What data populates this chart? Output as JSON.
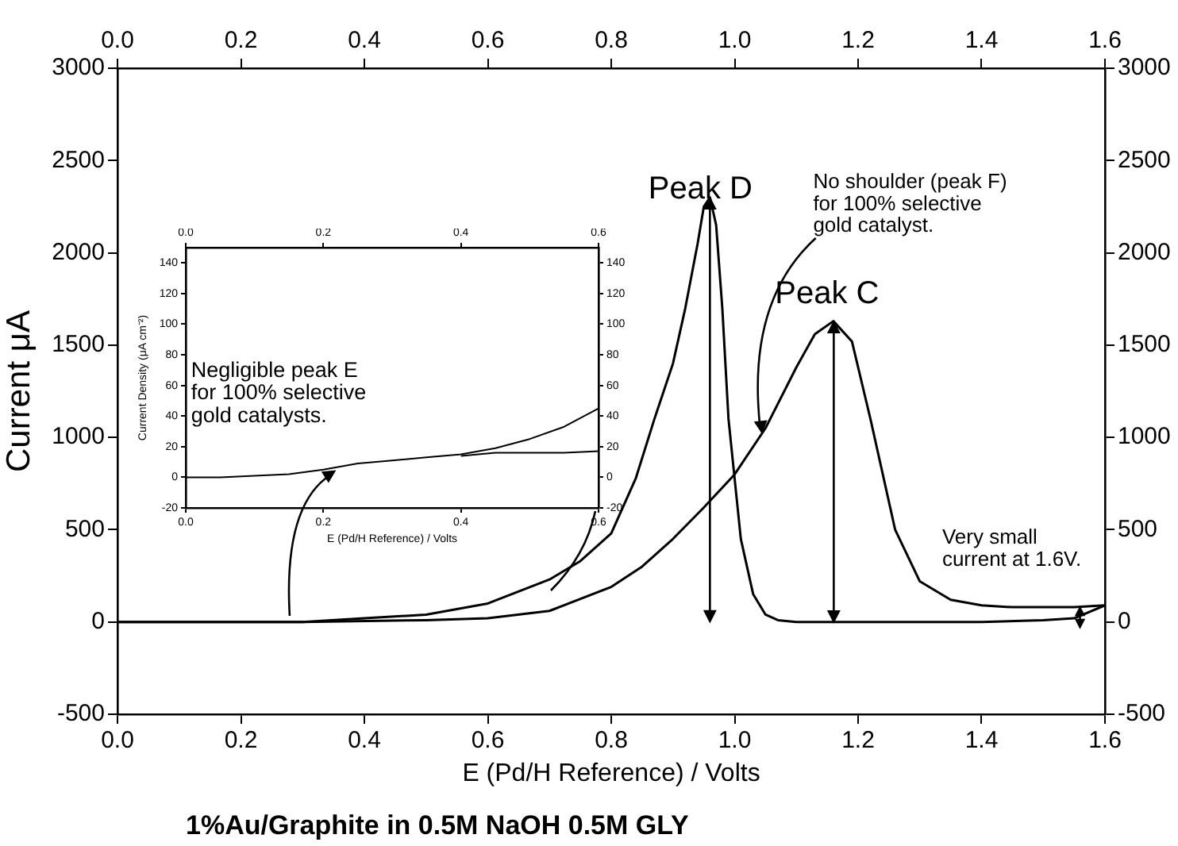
{
  "chart_data": [
    {
      "type": "line",
      "title": "1%Au/Graphite in 0.5M NaOH 0.5M GLY",
      "xlabel": "E (Pd/H Reference) / Volts",
      "ylabel": "Current μA",
      "xlim": [
        0,
        1.6
      ],
      "xticks": [
        {
          "value": 0,
          "label": "0.0"
        },
        {
          "value": 0.2,
          "label": "0.2"
        },
        {
          "value": 0.4,
          "label": "0.4"
        },
        {
          "value": 0.6,
          "label": "0.6"
        },
        {
          "value": 0.8,
          "label": "0.8"
        },
        {
          "value": 1,
          "label": "1.0"
        },
        {
          "value": 1.2,
          "label": "1.2"
        },
        {
          "value": 1.4,
          "label": "1.4"
        },
        {
          "value": 1.6,
          "label": "1.6"
        }
      ],
      "x2lim": [
        0,
        1.6
      ],
      "x2ticks": [
        {
          "value": 0,
          "label": "0.0"
        },
        {
          "value": 0.2,
          "label": "0.2"
        },
        {
          "value": 0.4,
          "label": "0.4"
        },
        {
          "value": 0.6,
          "label": "0.6"
        },
        {
          "value": 0.8,
          "label": "0.8"
        },
        {
          "value": 1,
          "label": "1.0"
        },
        {
          "value": 1.2,
          "label": "1.2"
        },
        {
          "value": 1.4,
          "label": "1.4"
        },
        {
          "value": 1.6,
          "label": "1.6"
        }
      ],
      "ylim": [
        -500,
        3000
      ],
      "yticks": [
        -500,
        0,
        500,
        1000,
        1500,
        2000,
        2500,
        3000
      ],
      "y2lim": [
        -500,
        3000
      ],
      "y2ticks": [
        -500,
        0,
        500,
        1000,
        1500,
        2000,
        2500,
        3000
      ],
      "series": [
        {
          "color": "#000000",
          "x": [
            0,
            0.3,
            0.5,
            0.6,
            0.7,
            0.8,
            0.85,
            0.9,
            0.95,
            1.0,
            1.05,
            1.1,
            1.13,
            1.16,
            1.19,
            1.22,
            1.26,
            1.3,
            1.35,
            1.4,
            1.45,
            1.5,
            1.55,
            1.6
          ],
          "values": [
            0,
            0,
            10,
            20,
            60,
            190,
            300,
            450,
            620,
            800,
            1050,
            1380,
            1560,
            1630,
            1520,
            1100,
            500,
            220,
            120,
            90,
            80,
            80,
            80,
            90
          ]
        },
        {
          "color": "#000000",
          "x": [
            1.6,
            1.55,
            1.5,
            1.4,
            1.3,
            1.2,
            1.1,
            1.07,
            1.05,
            1.03,
            1.01,
            0.99,
            0.98,
            0.97,
            0.96,
            0.95,
            0.94,
            0.92,
            0.9,
            0.87,
            0.84,
            0.8,
            0.75,
            0.7,
            0.6,
            0.5,
            0.4,
            0.3,
            0
          ],
          "values": [
            90,
            20,
            10,
            0,
            0,
            0,
            0,
            10,
            40,
            150,
            450,
            1100,
            1700,
            2150,
            2300,
            2250,
            2050,
            1700,
            1400,
            1100,
            780,
            480,
            330,
            230,
            100,
            40,
            20,
            0,
            0
          ]
        }
      ],
      "annotations": [
        {
          "text": "Peak D",
          "x": 0.96,
          "y": 2300
        },
        {
          "text": "Peak C",
          "x": 1.16,
          "y": 1630
        },
        {
          "text": "No shoulder (peak F)\nfor 100% selective\ngold catalyst.",
          "x": 1.05,
          "y": 1000
        },
        {
          "text": "Very small\ncurrent at 1.6V.",
          "x": 1.56,
          "y": 80
        }
      ]
    },
    {
      "type": "line",
      "xlabel": "E (Pd/H Reference) / Volts",
      "ylabel": "Current Density (μA cm⁻²)",
      "xlim": [
        0,
        0.6
      ],
      "xticks": [
        {
          "value": 0,
          "label": "0.0"
        },
        {
          "value": 0.2,
          "label": "0.2"
        },
        {
          "value": 0.4,
          "label": "0.4"
        },
        {
          "value": 0.6,
          "label": "0.6"
        }
      ],
      "x2lim": [
        0,
        0.6
      ],
      "x2ticks": [
        {
          "value": 0,
          "label": "0.0"
        },
        {
          "value": 0.2,
          "label": "0.2"
        },
        {
          "value": 0.4,
          "label": "0.4"
        },
        {
          "value": 0.6,
          "label": "0.6"
        }
      ],
      "ylim": [
        -20,
        150
      ],
      "yticks": [
        -20,
        0,
        20,
        40,
        60,
        80,
        100,
        120,
        140
      ],
      "y2lim": [
        -20,
        150
      ],
      "y2ticks": [
        -20,
        0,
        20,
        40,
        60,
        80,
        100,
        120,
        140
      ],
      "series": [
        {
          "color": "#000000",
          "x": [
            0,
            0.05,
            0.1,
            0.15,
            0.2,
            0.25,
            0.3,
            0.35,
            0.4,
            0.45,
            0.5,
            0.55,
            0.6
          ],
          "values": [
            0,
            0,
            1,
            2,
            5,
            9,
            11,
            13,
            15,
            19,
            25,
            33,
            45
          ]
        },
        {
          "color": "#000000",
          "x": [
            0.6,
            0.55,
            0.5,
            0.45,
            0.4
          ],
          "values": [
            17,
            16,
            16,
            16,
            14
          ]
        }
      ],
      "annotations": [
        {
          "text": "Negligible peak E\nfor 100% selective\ngold catalysts.",
          "x": 0.22,
          "y": 8
        }
      ]
    }
  ]
}
